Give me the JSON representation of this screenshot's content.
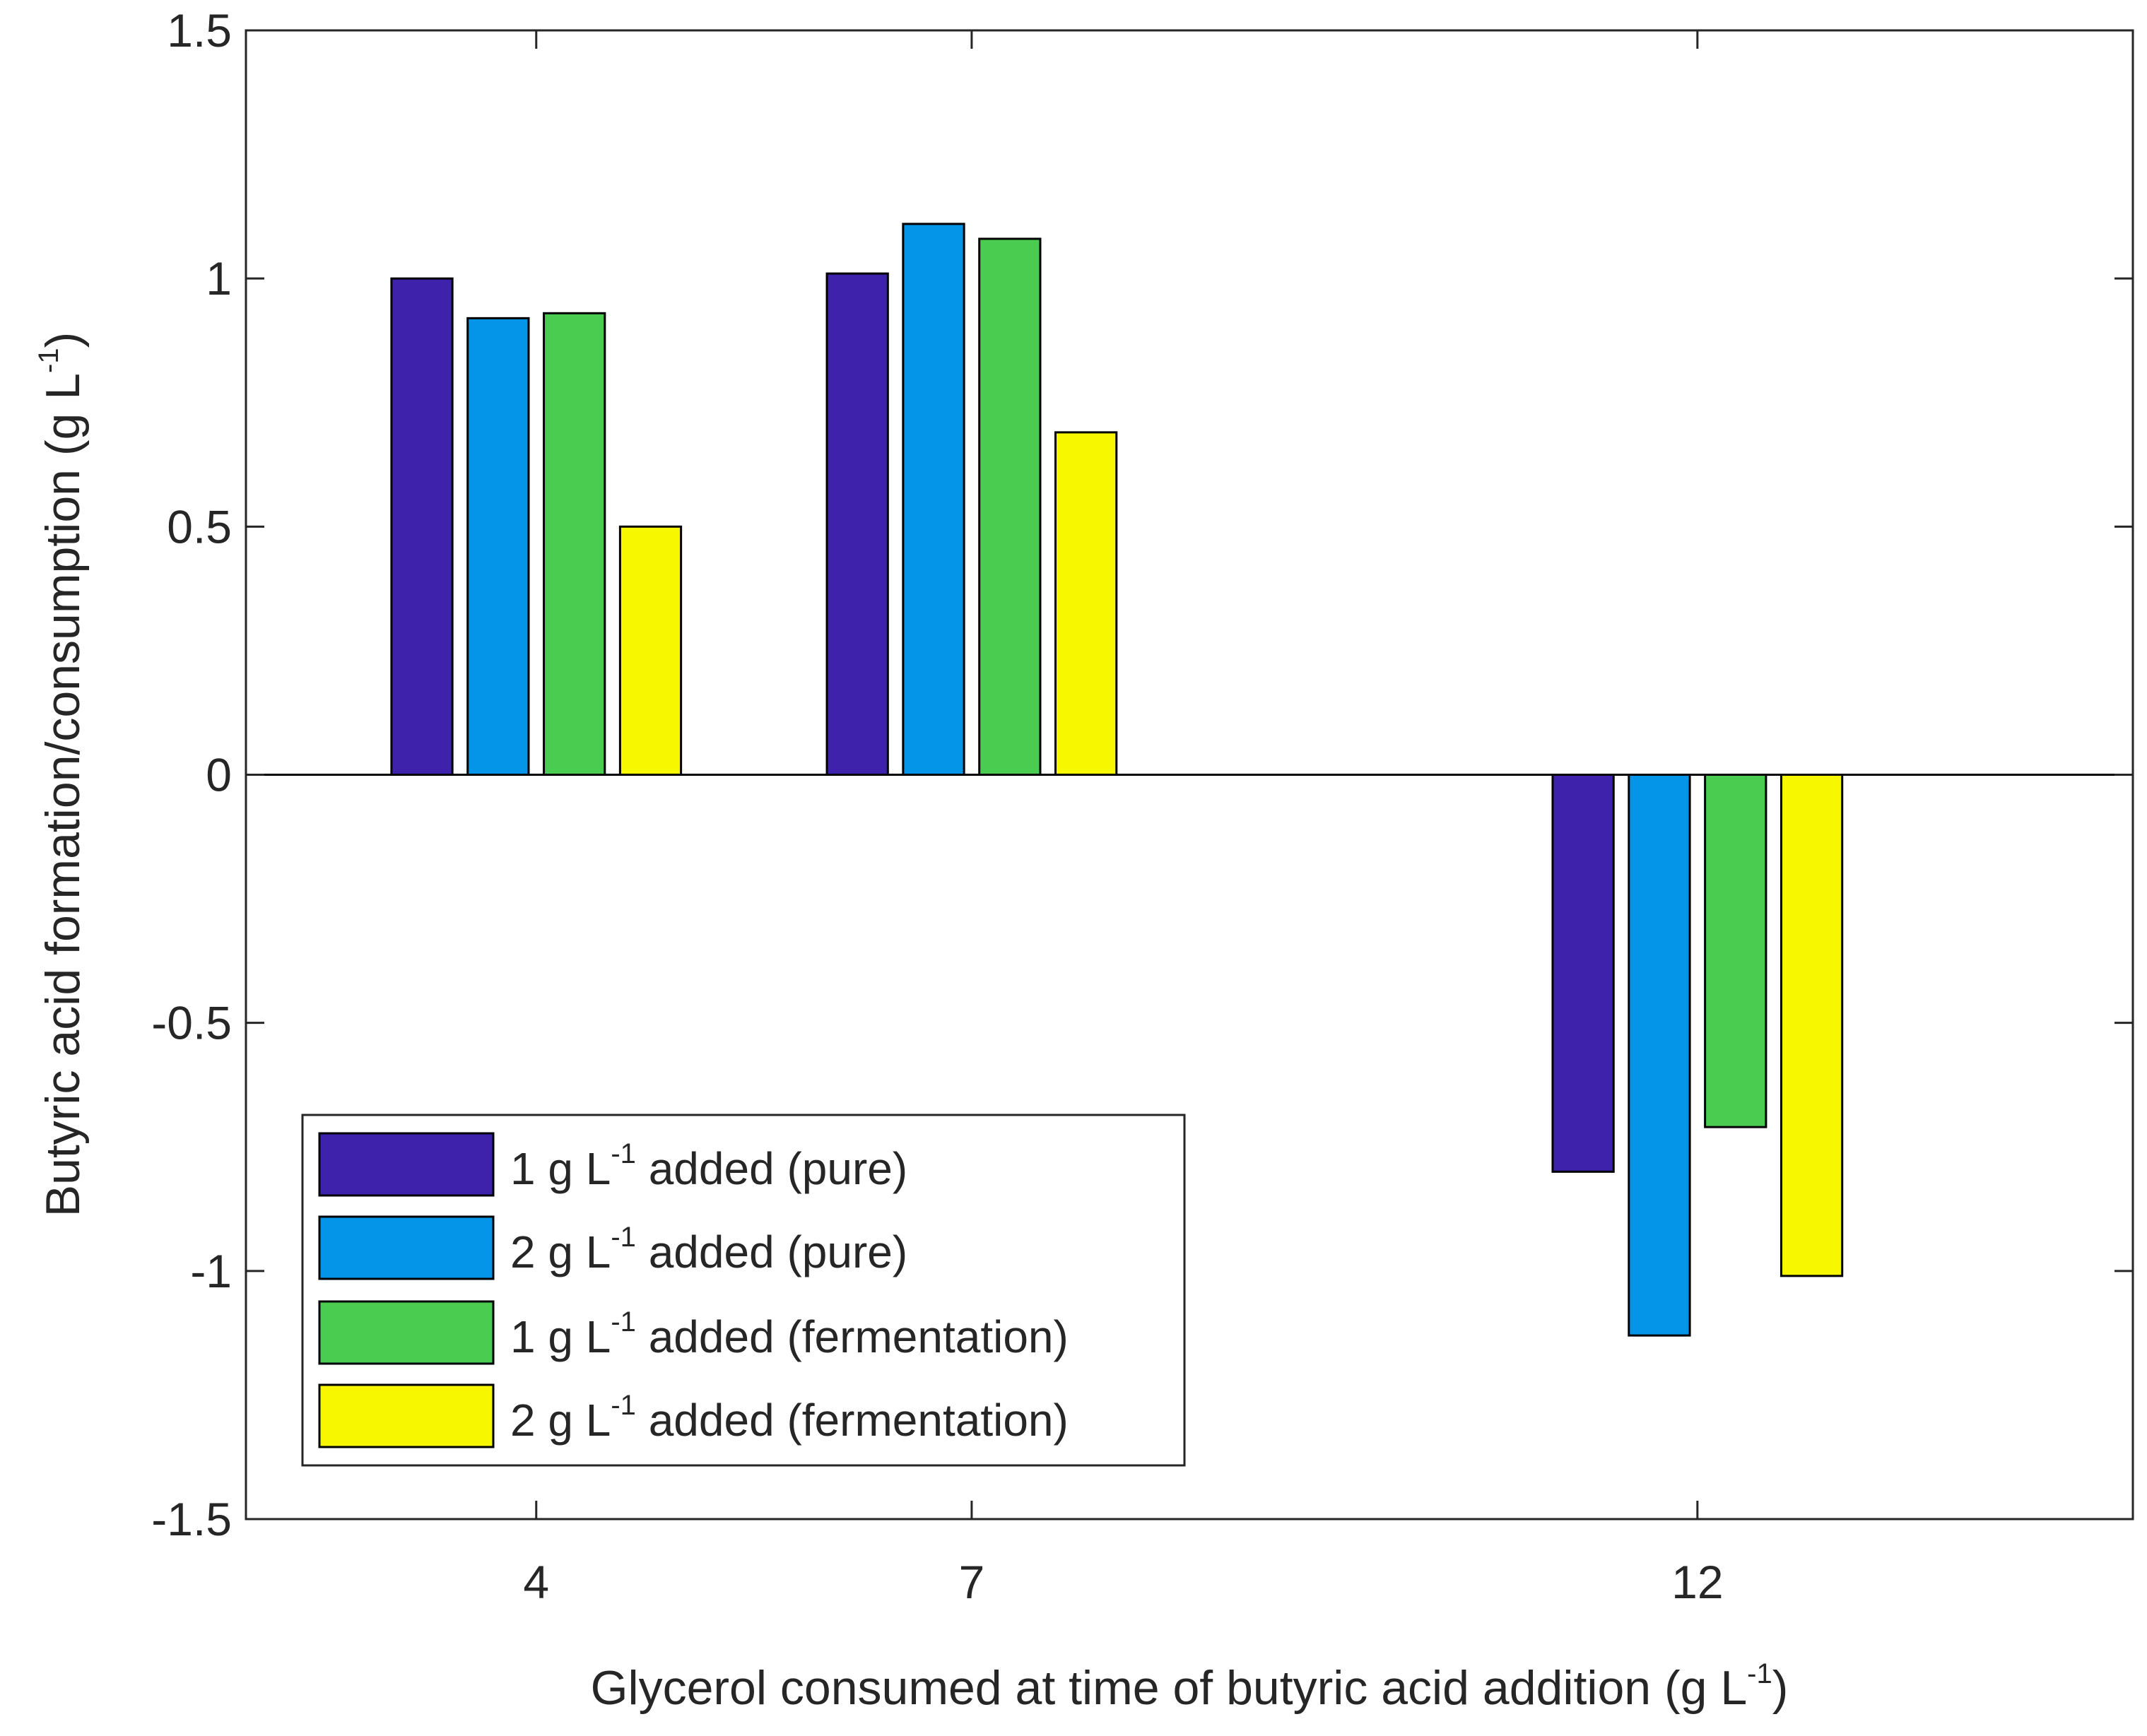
{
  "chart_data": {
    "type": "bar",
    "categories": [
      "4",
      "7",
      "12"
    ],
    "x": [
      4,
      7,
      12
    ],
    "series": [
      {
        "name": "1 g L-1 added (pure)",
        "color": "#3f22ab",
        "values": [
          1.0,
          1.01,
          -0.8
        ]
      },
      {
        "name": "2 g L-1 added (pure)",
        "color": "#0595e8",
        "values": [
          0.92,
          1.11,
          -1.13
        ]
      },
      {
        "name": "1 g L-1 added (fermentation)",
        "color": "#49cc4f",
        "values": [
          0.93,
          1.08,
          -0.71
        ]
      },
      {
        "name": "2 g L-1 added (fermentation)",
        "color": "#f7f700",
        "values": [
          0.5,
          0.69,
          -1.01
        ]
      }
    ],
    "legend": [
      {
        "prefix": "1 g L",
        "sup": "-1",
        "suffix": " added (pure)"
      },
      {
        "prefix": "2 g L",
        "sup": "-1",
        "suffix": " added (pure)"
      },
      {
        "prefix": "1 g L",
        "sup": "-1",
        "suffix": " added (fermentation)"
      },
      {
        "prefix": "2 g L",
        "sup": "-1",
        "suffix": " added (fermentation)"
      }
    ],
    "xlabel": {
      "main": "Glycerol consumed at time of butyric acid addition (g L",
      "sup": "-1",
      "close": ")"
    },
    "ylabel": {
      "main": "Butyric acid formation/consumption (g L",
      "sup": "-1",
      "close": ")"
    },
    "xlim": [
      2,
      15
    ],
    "ylim": [
      -1.5,
      1.5
    ],
    "yticks": [
      -1.5,
      -1,
      -0.5,
      0,
      0.5,
      1,
      1.5
    ],
    "ytick_labels": [
      "-1.5",
      "-1",
      "-0.5",
      "0",
      "0.5",
      "1",
      "1.5"
    ],
    "xticks": [
      4,
      7,
      12
    ],
    "xtick_labels": [
      "4",
      "7",
      "12"
    ],
    "grid": false,
    "legend_position": "bottom-left",
    "bar_group_width_units": 2.1
  }
}
